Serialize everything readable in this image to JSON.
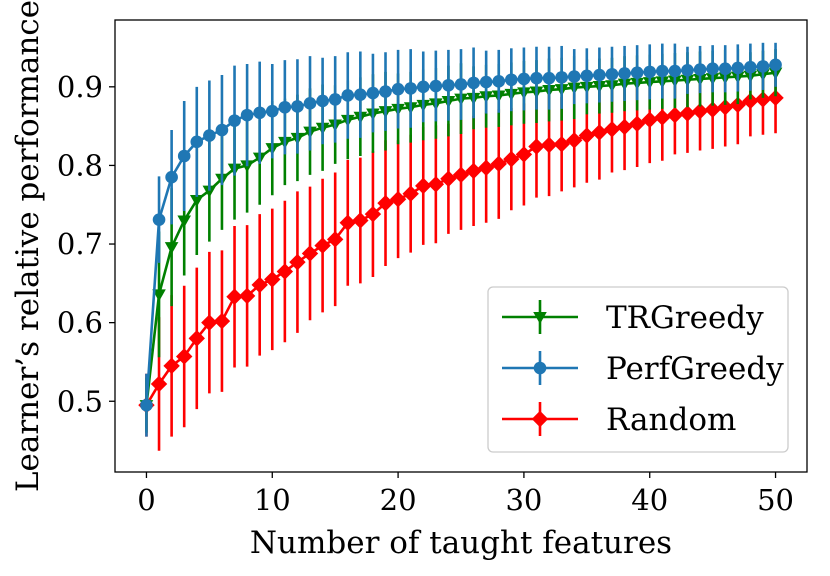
{
  "chart_data": {
    "type": "line",
    "title": "",
    "xlabel": "Number of taught features",
    "ylabel": "Learner’s relative performance",
    "xlim": [
      -2.5,
      52.5
    ],
    "ylim": [
      0.41,
      0.985
    ],
    "xticks": [
      0,
      10,
      20,
      30,
      40,
      50
    ],
    "xtick_labels": [
      "0",
      "10",
      "20",
      "30",
      "40",
      "50"
    ],
    "yticks": [
      0.5,
      0.6,
      0.7,
      0.8,
      0.9
    ],
    "ytick_labels": [
      "0.5",
      "0.6",
      "0.7",
      "0.8",
      "0.9"
    ],
    "grid": false,
    "legend_position": "lower-right",
    "x": [
      0,
      1,
      2,
      3,
      4,
      5,
      6,
      7,
      8,
      9,
      10,
      11,
      12,
      13,
      14,
      15,
      16,
      17,
      18,
      19,
      20,
      21,
      22,
      23,
      24,
      25,
      26,
      27,
      28,
      29,
      30,
      31,
      32,
      33,
      34,
      35,
      36,
      37,
      38,
      39,
      40,
      41,
      42,
      43,
      44,
      45,
      46,
      47,
      48,
      49,
      50
    ],
    "series": [
      {
        "name": "Random",
        "color": "#ff0000",
        "marker": "diamond",
        "values": [
          0.495,
          0.522,
          0.545,
          0.557,
          0.58,
          0.6,
          0.602,
          0.633,
          0.634,
          0.648,
          0.655,
          0.665,
          0.677,
          0.688,
          0.698,
          0.706,
          0.727,
          0.73,
          0.738,
          0.752,
          0.757,
          0.764,
          0.774,
          0.776,
          0.783,
          0.788,
          0.793,
          0.797,
          0.802,
          0.808,
          0.814,
          0.824,
          0.826,
          0.827,
          0.832,
          0.838,
          0.842,
          0.846,
          0.849,
          0.853,
          0.858,
          0.861,
          0.864,
          0.866,
          0.869,
          0.871,
          0.874,
          0.877,
          0.882,
          0.884,
          0.886
        ],
        "errors": [
          0.04,
          0.085,
          0.09,
          0.09,
          0.09,
          0.09,
          0.09,
          0.09,
          0.09,
          0.09,
          0.09,
          0.09,
          0.09,
          0.085,
          0.085,
          0.085,
          0.08,
          0.08,
          0.08,
          0.08,
          0.075,
          0.075,
          0.075,
          0.075,
          0.07,
          0.07,
          0.07,
          0.07,
          0.07,
          0.065,
          0.065,
          0.065,
          0.065,
          0.06,
          0.06,
          0.06,
          0.06,
          0.055,
          0.055,
          0.055,
          0.055,
          0.055,
          0.05,
          0.05,
          0.05,
          0.05,
          0.05,
          0.05,
          0.045,
          0.045,
          0.045
        ]
      },
      {
        "name": "TRGreedy",
        "color": "#008000",
        "marker": "triangle-down",
        "values": [
          0.495,
          0.636,
          0.696,
          0.73,
          0.756,
          0.768,
          0.783,
          0.796,
          0.8,
          0.81,
          0.822,
          0.83,
          0.835,
          0.843,
          0.848,
          0.852,
          0.858,
          0.862,
          0.866,
          0.869,
          0.872,
          0.874,
          0.877,
          0.879,
          0.882,
          0.885,
          0.886,
          0.888,
          0.889,
          0.891,
          0.893,
          0.894,
          0.896,
          0.897,
          0.899,
          0.9,
          0.901,
          0.902,
          0.904,
          0.905,
          0.906,
          0.907,
          0.908,
          0.909,
          0.91,
          0.911,
          0.912,
          0.913,
          0.914,
          0.916,
          0.918
        ],
        "errors": [
          0.035,
          0.08,
          0.075,
          0.07,
          0.07,
          0.065,
          0.065,
          0.065,
          0.06,
          0.06,
          0.06,
          0.055,
          0.055,
          0.055,
          0.055,
          0.05,
          0.05,
          0.05,
          0.05,
          0.05,
          0.045,
          0.045,
          0.045,
          0.045,
          0.045,
          0.045,
          0.04,
          0.04,
          0.04,
          0.04,
          0.04,
          0.04,
          0.04,
          0.04,
          0.04,
          0.035,
          0.035,
          0.035,
          0.035,
          0.035,
          0.035,
          0.035,
          0.035,
          0.035,
          0.035,
          0.035,
          0.035,
          0.035,
          0.03,
          0.03,
          0.03
        ]
      },
      {
        "name": "PerfGreedy",
        "color": "#1f77b4",
        "marker": "circle",
        "values": [
          0.495,
          0.731,
          0.785,
          0.812,
          0.83,
          0.838,
          0.845,
          0.857,
          0.864,
          0.867,
          0.869,
          0.874,
          0.875,
          0.879,
          0.882,
          0.884,
          0.889,
          0.89,
          0.892,
          0.894,
          0.897,
          0.898,
          0.9,
          0.901,
          0.902,
          0.903,
          0.905,
          0.906,
          0.907,
          0.909,
          0.91,
          0.911,
          0.911,
          0.912,
          0.913,
          0.914,
          0.915,
          0.916,
          0.917,
          0.918,
          0.919,
          0.92,
          0.92,
          0.921,
          0.922,
          0.923,
          0.923,
          0.924,
          0.925,
          0.926,
          0.928
        ],
        "errors": [
          0.04,
          0.055,
          0.06,
          0.07,
          0.07,
          0.07,
          0.07,
          0.07,
          0.065,
          0.065,
          0.06,
          0.06,
          0.06,
          0.06,
          0.055,
          0.055,
          0.055,
          0.055,
          0.05,
          0.05,
          0.05,
          0.05,
          0.045,
          0.045,
          0.045,
          0.045,
          0.045,
          0.04,
          0.04,
          0.04,
          0.04,
          0.04,
          0.04,
          0.04,
          0.035,
          0.035,
          0.035,
          0.035,
          0.035,
          0.035,
          0.035,
          0.035,
          0.035,
          0.03,
          0.03,
          0.03,
          0.03,
          0.03,
          0.03,
          0.03,
          0.028
        ]
      }
    ],
    "legend_order": [
      "TRGreedy",
      "PerfGreedy",
      "Random"
    ]
  }
}
